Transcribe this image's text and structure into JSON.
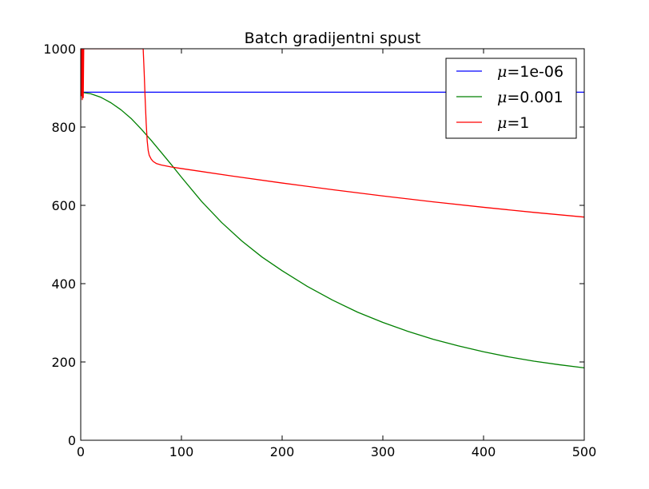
{
  "chart_data": {
    "type": "line",
    "title": "Batch gradijentni spust",
    "xlabel": "",
    "ylabel": "",
    "xlim": [
      0,
      500
    ],
    "ylim": [
      0,
      1000
    ],
    "xticks": [
      0,
      100,
      200,
      300,
      400,
      500
    ],
    "yticks": [
      0,
      200,
      400,
      600,
      800,
      1000
    ],
    "grid": false,
    "legend": "top-right",
    "series": [
      {
        "name": "μ=1e-06",
        "legend_symbol": "μ",
        "legend_value": "=1e-06",
        "color": "#0000ff",
        "x": [
          0,
          500
        ],
        "y": [
          889,
          889
        ]
      },
      {
        "name": "μ=0.001",
        "legend_symbol": "μ",
        "legend_value": "=0.001",
        "color": "#008000",
        "x": [
          0,
          10,
          20,
          30,
          40,
          50,
          60,
          70,
          80,
          90,
          100,
          120,
          140,
          160,
          180,
          200,
          225,
          250,
          275,
          300,
          325,
          350,
          375,
          400,
          425,
          450,
          475,
          500
        ],
        "y": [
          889,
          885,
          876,
          862,
          844,
          822,
          795,
          766,
          735,
          704,
          672,
          610,
          556,
          509,
          468,
          433,
          393,
          358,
          327,
          301,
          278,
          258,
          241,
          226,
          213,
          202,
          193,
          185
        ]
      },
      {
        "name": "μ=1",
        "legend_symbol": "μ",
        "legend_value": "=1",
        "color": "#ff0000",
        "x": [
          0,
          0.5,
          1,
          1.5,
          2,
          2.5,
          3,
          62,
          63,
          64,
          65,
          66,
          67,
          68,
          70,
          72,
          75,
          80,
          90,
          100,
          150,
          200,
          250,
          300,
          350,
          400,
          450,
          500
        ],
        "y": [
          1000,
          880,
          1000,
          870,
          1000,
          875,
          1000,
          1000,
          940,
          870,
          810,
          765,
          740,
          728,
          718,
          712,
          707,
          703,
          698,
          694,
          675,
          657,
          640,
          624,
          609,
          595,
          582,
          570
        ]
      }
    ]
  }
}
